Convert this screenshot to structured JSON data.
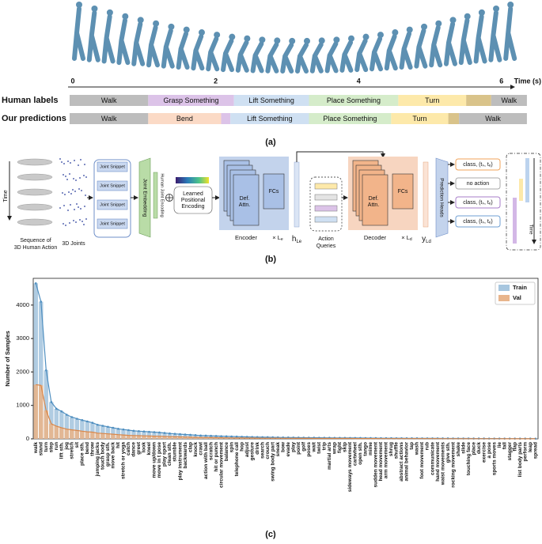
{
  "figure_a": {
    "caption": "(a)",
    "time_ticks": [
      0,
      2,
      4,
      6
    ],
    "time_label": "Time (s)",
    "rows": [
      {
        "name": "Human labels",
        "segments": [
          {
            "label": "Walk",
            "start": 0,
            "end": 1.1,
            "color": "#bdbdbd"
          },
          {
            "label": "Grasp Something",
            "start": 1.1,
            "end": 2.3,
            "color": "#dcc3e8"
          },
          {
            "label": "Lift Something",
            "start": 2.3,
            "end": 3.35,
            "color": "#cfe0f2"
          },
          {
            "label": "Place Something",
            "start": 3.35,
            "end": 4.6,
            "color": "#d5ecca"
          },
          {
            "label": "Turn",
            "start": 4.6,
            "end": 5.55,
            "color": "#fde9aa"
          },
          {
            "label": null,
            "start": 5.55,
            "end": 5.9,
            "color": "#d9c38a"
          },
          {
            "label": "Walk",
            "start": 5.9,
            "end": 6.4,
            "color": "#bdbdbd"
          }
        ]
      },
      {
        "name": "Our predictions",
        "segments": [
          {
            "label": "Walk",
            "start": 0,
            "end": 1.1,
            "color": "#bdbdbd"
          },
          {
            "label": "Bend",
            "start": 1.1,
            "end": 2.12,
            "color": "#fbdac6"
          },
          {
            "label": null,
            "start": 2.12,
            "end": 2.25,
            "color": "#dcc3e8"
          },
          {
            "label": "Lift Something",
            "start": 2.25,
            "end": 3.35,
            "color": "#cfe0f2"
          },
          {
            "label": "Place Something",
            "start": 3.35,
            "end": 4.5,
            "color": "#d5ecca"
          },
          {
            "label": "Turn",
            "start": 4.5,
            "end": 5.3,
            "color": "#fde9aa"
          },
          {
            "label": null,
            "start": 5.3,
            "end": 5.45,
            "color": "#d9c38a"
          },
          {
            "label": "Walk",
            "start": 5.45,
            "end": 6.4,
            "color": "#bdbdbd"
          }
        ]
      }
    ]
  },
  "figure_b": {
    "caption": "(b)",
    "time": "Time",
    "sequence": [
      "Sequence of",
      "3D Human Action"
    ],
    "joints": "3D Joints",
    "snippets": [
      "Joint Snippet",
      "Joint Snippet",
      "Joint Snippet",
      "Joint Snippet"
    ],
    "embedding": "Joint Embedding",
    "joint_encoding": "Human Joint Encoding",
    "positional": [
      "Learned",
      "Positional",
      "Encoding"
    ],
    "encoder": {
      "attn": [
        "Def.",
        "Attn."
      ],
      "fcs": "FCs",
      "name": "Encoder",
      "repeat": "× L",
      "repeat_sub": "e"
    },
    "h": {
      "main": "h",
      "sub": "Le"
    },
    "queries": [
      "Action",
      "Queries"
    ],
    "decoder": {
      "attn": [
        "Def.",
        "Attn."
      ],
      "fcs": "FCs",
      "name": "Decoder",
      "repeat": "× L",
      "repeat_sub": "d"
    },
    "y": {
      "main": "y",
      "sub": "Ld"
    },
    "heads": "Prediction Heads",
    "outputs": [
      "class, (tₛ, tₑ)",
      "no action",
      "class, (tₛ, tₑ)",
      "class, (tₛ, tₑ)"
    ],
    "time_out": "Time"
  },
  "chart_data": {
    "type": "bar",
    "caption": "(c)",
    "ylabel": "Number of Samples",
    "legend": "upper right",
    "ylim": [
      0,
      4800
    ],
    "yticks": [
      0,
      1000,
      2000,
      3000,
      4000
    ],
    "categories": [
      "walk",
      "stand",
      "turn",
      "step",
      "run",
      "lift sth.",
      "jog",
      "stretch",
      "sit",
      "place sth.",
      "bend",
      "throw",
      "jumping jacks",
      "touch body",
      "grasp sth.",
      "move back",
      "hit",
      "stretch or yoga",
      "catch",
      "dance",
      "greet",
      "look",
      "kneel",
      "move up/down",
      "move in t pose",
      "play sport",
      "clean sth.",
      "stumble",
      "play instrument",
      "backwards",
      "clap",
      "knock",
      "crawl",
      "action with ball",
      "scratch",
      "hit or punch",
      "circular movement",
      "balance",
      "spin",
      "telephone call",
      "hop",
      "adjust",
      "gesture",
      "drink",
      "search",
      "crouch",
      "swing body part",
      "sneak",
      "bow",
      "evade",
      "play",
      "point",
      "golf",
      "poses",
      "wait",
      "twist",
      "trip",
      "martial arts",
      "wrap",
      "fight",
      "skip",
      "sideways movement",
      "cartwheel",
      "open sth.",
      "tango",
      "mime",
      "sudden movement",
      "head movement",
      "arm movement",
      "shrug",
      "shuffle",
      "abstract actions",
      "animal behavior",
      "tap",
      "wash",
      "foot movement",
      "rub",
      "communicate",
      "hand movement",
      "waist movements",
      "give sth.",
      "rocking movement",
      "shake",
      "slide",
      "touching face",
      "place",
      "duck",
      "exercise",
      "a pose",
      "sports moves",
      "lie",
      "fall",
      "stagger",
      "flap",
      "list body parts",
      "perform",
      "leap",
      "spread"
    ],
    "series": [
      {
        "name": "Train",
        "color": "#a7c6df",
        "line_color": "#4f8fc0",
        "values": [
          4650,
          4100,
          2050,
          1100,
          900,
          820,
          720,
          650,
          600,
          560,
          520,
          480,
          420,
          390,
          360,
          330,
          300,
          280,
          260,
          240,
          230,
          220,
          210,
          200,
          190,
          175,
          160,
          150,
          140,
          130,
          120,
          110,
          100,
          95,
          90,
          85,
          80,
          75,
          70,
          66,
          62,
          58,
          55,
          52,
          50,
          48,
          45,
          43,
          41,
          40,
          38,
          36,
          35,
          34,
          33,
          32,
          31,
          30,
          29,
          28,
          27,
          26,
          25,
          24,
          23,
          22,
          21,
          20,
          20,
          19,
          18,
          18,
          17,
          16,
          16,
          15,
          15,
          14,
          14,
          13,
          13,
          12,
          12,
          11,
          11,
          10,
          10,
          10,
          9,
          9,
          9,
          8,
          8,
          8,
          7,
          7,
          7,
          6
        ]
      },
      {
        "name": "Val",
        "color": "#e8b58c",
        "line_color": "#d9874a",
        "values": [
          1620,
          1600,
          850,
          450,
          380,
          330,
          290,
          270,
          250,
          230,
          210,
          200,
          170,
          160,
          150,
          140,
          125,
          115,
          105,
          100,
          95,
          90,
          85,
          80,
          78,
          72,
          66,
          62,
          58,
          54,
          50,
          45,
          42,
          40,
          37,
          35,
          33,
          31,
          29,
          27,
          26,
          24,
          23,
          21,
          20,
          20,
          18,
          18,
          17,
          16,
          16,
          15,
          14,
          14,
          13,
          13,
          13,
          12,
          12,
          11,
          11,
          11,
          10,
          10,
          9,
          9,
          9,
          8,
          8,
          8,
          7,
          7,
          7,
          7,
          6,
          6,
          6,
          6,
          6,
          5,
          5,
          5,
          5,
          5,
          4,
          4,
          4,
          4,
          4,
          4,
          4,
          3,
          3,
          3,
          3,
          3,
          3,
          2
        ]
      }
    ]
  }
}
